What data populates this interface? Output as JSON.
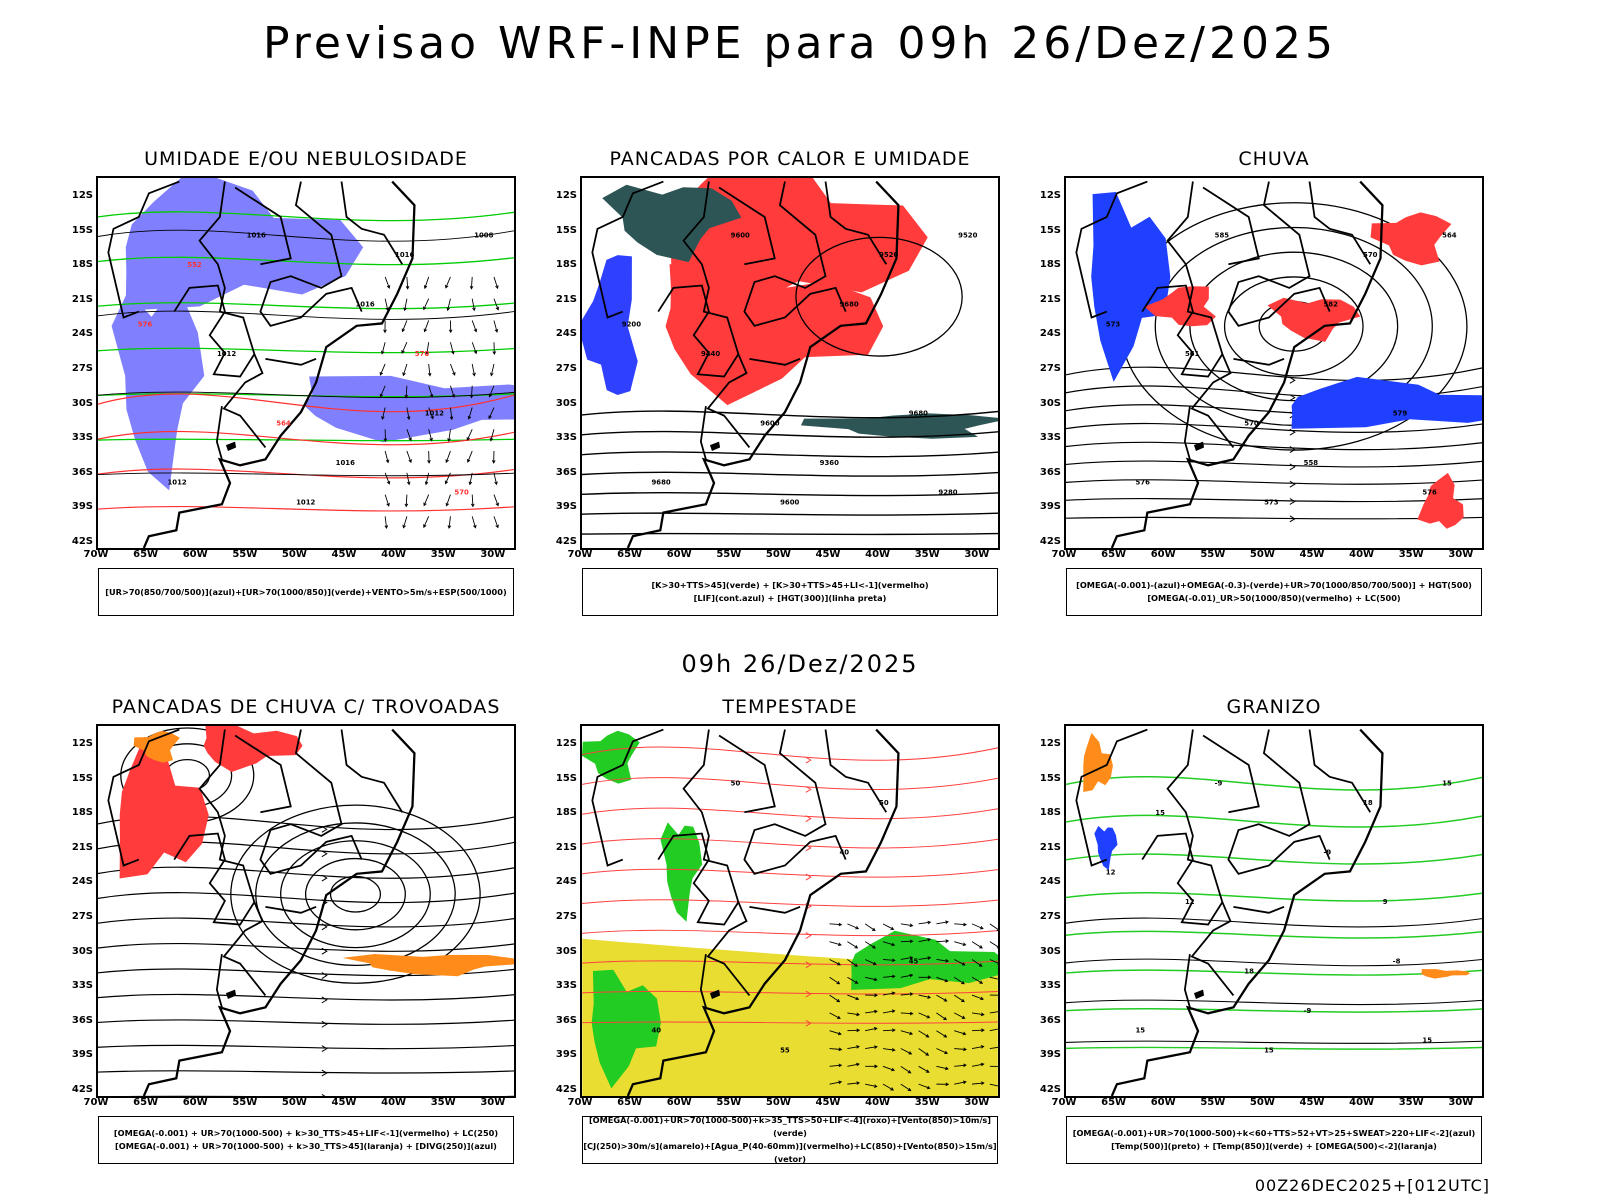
{
  "title": "Previsao WRF-INPE  para 09h 26/Dez/2025",
  "mid_title": "09h 26/Dez/2025",
  "footer": "00Z26DEC2025+[012UTC]",
  "lat_ticks": [
    "12S",
    "15S",
    "18S",
    "21S",
    "24S",
    "27S",
    "30S",
    "33S",
    "36S",
    "39S",
    "42S"
  ],
  "lon_ticks": [
    "70W",
    "65W",
    "60W",
    "55W",
    "50W",
    "45W",
    "40W",
    "35W",
    "30W"
  ],
  "panels": [
    {
      "title": "UMIDADE E/OU NEBULOSIDADE",
      "legend": [
        "[UR>70(850/700/500)](azul)+[UR>70(1000/850)](verde)+VENTO>5m/s+ESP(500/1000)"
      ],
      "labels": [
        "1016",
        "1016",
        "1012",
        "1012",
        "1012",
        "1016",
        "1008",
        "1012",
        "1016",
        "570",
        "576",
        "564",
        "552",
        "570"
      ],
      "colors": {
        "primary": "#8080ff",
        "secondary": "#00cc00",
        "contour": "#ff3030"
      }
    },
    {
      "title": "PANCADAS POR CALOR E UMIDADE",
      "legend": [
        "[K>30+TTS>45](verde) + [K>30+TTS>45+LI<-1](vermelho)",
        "[LIF](cont.azul) + [HGT(300)](linha preta)"
      ],
      "labels": [
        "9600",
        "9680",
        "9680",
        "9680",
        "9600",
        "9520",
        "9520",
        "9440",
        "9360",
        "9280",
        "9200",
        "9600"
      ],
      "colors": {
        "primary": "#ff3b3b",
        "secondary": "#2e5555",
        "contour": "#3040ff"
      }
    },
    {
      "title": "CHUVA",
      "legend": [
        "[OMEGA(-0.001)-(azul)+OMEGA(-0.3)-(verde)+UR>70(1000/850/700/500)] + HGT(500)",
        "[OMEGA(-0.01)_UR>50(1000/850)(vermelho) + LC(500)"
      ],
      "labels": [
        "585",
        "582",
        "579",
        "576",
        "573",
        "570",
        "564",
        "561",
        "558",
        "576",
        "573",
        "570"
      ],
      "colors": {
        "primary": "#ff3b3b",
        "secondary": "#2040ff",
        "contour": "#000000"
      }
    },
    {
      "title": "PANCADAS DE CHUVA C/ TROVOADAS",
      "legend": [
        "[OMEGA(-0.001) + UR>70(1000-500) + k>30_TTS>45+LIF<-1](vermelho) + LC(250)",
        "[OMEGA(-0.001) + UR>70(1000-500) + k>30_TTS>45](laranja) + [DIVG(250)](azul)"
      ],
      "labels": [],
      "colors": {
        "primary": "#ff3b3b",
        "secondary": "#ff8c1a",
        "contour": "#000000"
      }
    },
    {
      "title": "TEMPESTADE",
      "legend": [
        "[OMEGA(-0.001)+UR>70(1000-500)+k>35_TTS>50+LIF<-4](roxo)+[Vento(850)>10m/s](verde)",
        "[CJ(250)>30m/s](amarelo)+[Agua_P(40-60mm)](vermelho)+LC(850)+[Vento(850)>15m/s](vetor)"
      ],
      "labels": [
        "50",
        "40",
        "45",
        "40",
        "55",
        "50"
      ],
      "colors": {
        "primary": "#e8dd30",
        "secondary": "#22cc22",
        "contour": "#ff4040"
      }
    },
    {
      "title": "GRANIZO",
      "legend": [
        "[OMEGA(-0.001)+UR>70(1000-500)+k<60+TTS>52+VT>25+SWEAT>220+LIF<-2](azul)",
        "[Temp(500)](preto) + [Temp(850)](verde) + [OMEGA(500)<-2](laranja)"
      ],
      "labels": [
        "-9",
        "-9",
        "-8",
        "15",
        "15",
        "18",
        "15",
        "12",
        "-9",
        "15",
        "12",
        "18",
        "15",
        "9"
      ],
      "colors": {
        "primary": "#22cc22",
        "secondary": "#ff8c1a",
        "contour": "#000000"
      }
    }
  ]
}
